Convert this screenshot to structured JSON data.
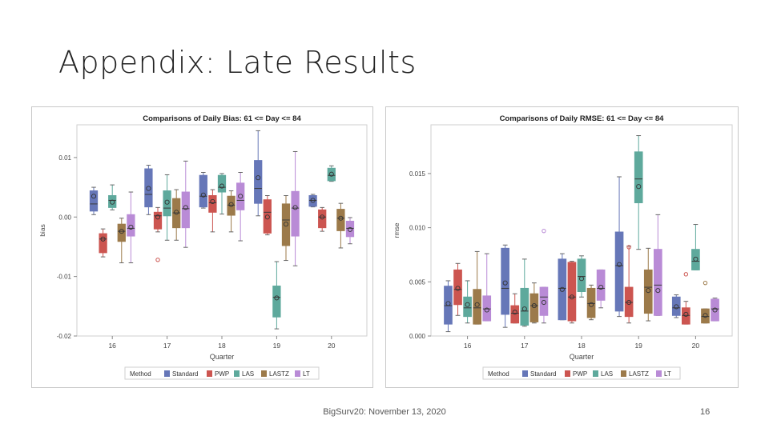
{
  "slide": {
    "title": "Appendix: Late Results",
    "footer": "BigSurv20: November 13, 2020",
    "page_number": "16"
  },
  "colors": {
    "Standard": "#6677b8",
    "PWP": "#cc5550",
    "LAS": "#5ea99c",
    "LASTZ": "#9c7a4a",
    "LT": "#b98bd6"
  },
  "chart_data": [
    {
      "type": "box",
      "title": "Comparisons of Daily Bias: 61 <= Day <= 84",
      "xlabel": "Quarter",
      "ylabel": "bias",
      "ylim": [
        -0.02,
        0.0155
      ],
      "yticks": [
        0.01,
        0.0,
        -0.01,
        -0.02
      ],
      "ytick_labels": [
        "0.01",
        "0.00",
        "-0.01",
        "-0.02"
      ],
      "categories": [
        "16",
        "17",
        "18",
        "19",
        "20"
      ],
      "legend_title": "Method",
      "series": [
        {
          "name": "Standard",
          "boxes": [
            {
              "min": 0.0004,
              "q1": 0.001,
              "median": 0.0022,
              "q3": 0.0044,
              "max": 0.005,
              "mean": 0.0035
            },
            {
              "min": 0.0004,
              "q1": 0.0017,
              "median": 0.0038,
              "q3": 0.0081,
              "max": 0.0087,
              "mean": 0.0048
            },
            {
              "min": 0.0015,
              "q1": 0.0017,
              "median": 0.0035,
              "q3": 0.007,
              "max": 0.0075,
              "mean": 0.0037
            },
            {
              "min": 0.0002,
              "q1": 0.0023,
              "median": 0.0048,
              "q3": 0.0095,
              "max": 0.0145,
              "mean": 0.0066
            },
            {
              "min": 0.0017,
              "q1": 0.0018,
              "median": 0.0028,
              "q3": 0.0036,
              "max": 0.0038,
              "mean": 0.0028
            }
          ]
        },
        {
          "name": "PWP",
          "boxes": [
            {
              "min": -0.0067,
              "q1": -0.006,
              "median": -0.0037,
              "q3": -0.0028,
              "max": -0.002,
              "mean": -0.0037
            },
            {
              "min": -0.0025,
              "q1": -0.002,
              "median": 0.0002,
              "q3": 0.0008,
              "max": 0.0016,
              "mean": 0.0,
              "outliers": [
                -0.0072
              ]
            },
            {
              "min": -0.0025,
              "q1": 0.0008,
              "median": 0.0024,
              "q3": 0.0036,
              "max": 0.0046,
              "mean": 0.0026
            },
            {
              "min": -0.003,
              "q1": -0.0027,
              "median": 0.0008,
              "q3": 0.0029,
              "max": 0.0036,
              "mean": 0.0
            },
            {
              "min": -0.0024,
              "q1": -0.0018,
              "median": 0.0,
              "q3": 0.0012,
              "max": 0.0016,
              "mean": 0.0
            }
          ]
        },
        {
          "name": "LAS",
          "boxes": [
            {
              "min": 0.0012,
              "q1": 0.0016,
              "median": 0.0028,
              "q3": 0.0036,
              "max": 0.0054,
              "mean": 0.0025
            },
            {
              "min": -0.0039,
              "q1": 0.0002,
              "median": 0.0015,
              "q3": 0.0044,
              "max": 0.0071,
              "mean": 0.0025
            },
            {
              "min": 0.0005,
              "q1": 0.0042,
              "median": 0.005,
              "q3": 0.007,
              "max": 0.0073,
              "mean": 0.0052
            },
            {
              "min": -0.0188,
              "q1": -0.0168,
              "median": -0.0135,
              "q3": -0.0116,
              "max": -0.0075,
              "mean": -0.0136
            },
            {
              "min": 0.006,
              "q1": 0.0061,
              "median": 0.007,
              "q3": 0.0082,
              "max": 0.0086,
              "mean": 0.0072
            }
          ]
        },
        {
          "name": "LASTZ",
          "boxes": [
            {
              "min": -0.0077,
              "q1": -0.0041,
              "median": -0.0024,
              "q3": -0.0012,
              "max": -0.0002,
              "mean": -0.0024
            },
            {
              "min": -0.0039,
              "q1": -0.0018,
              "median": 0.0007,
              "q3": 0.0031,
              "max": 0.0046,
              "mean": 0.0008
            },
            {
              "min": -0.0025,
              "q1": 0.0003,
              "median": 0.002,
              "q3": 0.0035,
              "max": 0.0044,
              "mean": 0.0021
            },
            {
              "min": -0.0073,
              "q1": -0.0048,
              "median": -0.0005,
              "q3": 0.0022,
              "max": 0.0036,
              "mean": -0.0012
            },
            {
              "min": -0.0052,
              "q1": -0.0023,
              "median": -0.0002,
              "q3": 0.0013,
              "max": 0.0023,
              "mean": -0.0002
            }
          ]
        },
        {
          "name": "LT",
          "boxes": [
            {
              "min": -0.0077,
              "q1": -0.0032,
              "median": -0.0019,
              "q3": 0.0004,
              "max": 0.0042,
              "mean": -0.0017
            },
            {
              "min": -0.0051,
              "q1": -0.0018,
              "median": 0.0014,
              "q3": 0.0042,
              "max": 0.0094,
              "mean": 0.0016
            },
            {
              "min": -0.004,
              "q1": 0.0012,
              "median": 0.0028,
              "q3": 0.0057,
              "max": 0.0075,
              "mean": 0.0035
            },
            {
              "min": -0.0082,
              "q1": -0.0032,
              "median": 0.0015,
              "q3": 0.0043,
              "max": 0.011,
              "mean": 0.0016
            },
            {
              "min": -0.0045,
              "q1": -0.0033,
              "median": -0.0019,
              "q3": -0.0007,
              "max": -0.0001,
              "mean": -0.0021
            }
          ]
        }
      ]
    },
    {
      "type": "box",
      "title": "Comparisons of Daily RMSE: 61 <= Day <= 84",
      "xlabel": "Quarter",
      "ylabel": "rmse",
      "ylim": [
        0.0,
        0.0195
      ],
      "yticks": [
        0.015,
        0.01,
        0.005,
        0.0
      ],
      "ytick_labels": [
        "0.015",
        "0.010",
        "0.005",
        "0.000"
      ],
      "categories": [
        "16",
        "17",
        "18",
        "19",
        "20"
      ],
      "legend_title": "Method",
      "series": [
        {
          "name": "Standard",
          "boxes": [
            {
              "min": 0.0004,
              "q1": 0.0011,
              "median": 0.0028,
              "q3": 0.0046,
              "max": 0.0051,
              "mean": 0.003
            },
            {
              "min": 0.0008,
              "q1": 0.002,
              "median": 0.0044,
              "q3": 0.0081,
              "max": 0.0084,
              "mean": 0.0049
            },
            {
              "min": 0.0015,
              "q1": 0.0015,
              "median": 0.0044,
              "q3": 0.0071,
              "max": 0.0076,
              "mean": 0.0043
            },
            {
              "min": 0.0018,
              "q1": 0.0023,
              "median": 0.0065,
              "q3": 0.0096,
              "max": 0.0147,
              "mean": 0.0066
            },
            {
              "min": 0.0017,
              "q1": 0.0019,
              "median": 0.0026,
              "q3": 0.0036,
              "max": 0.0038,
              "mean": 0.0027
            }
          ]
        },
        {
          "name": "PWP",
          "boxes": [
            {
              "min": 0.0019,
              "q1": 0.0029,
              "median": 0.0043,
              "q3": 0.0061,
              "max": 0.0067,
              "mean": 0.0044
            },
            {
              "min": 0.0012,
              "q1": 0.0012,
              "median": 0.0021,
              "q3": 0.0028,
              "max": 0.0039,
              "mean": 0.0022
            },
            {
              "min": 0.0012,
              "q1": 0.0014,
              "median": 0.0036,
              "q3": 0.0068,
              "max": 0.0069,
              "mean": 0.0036
            },
            {
              "min": 0.0012,
              "q1": 0.0018,
              "median": 0.0031,
              "q3": 0.0045,
              "max": 0.0083,
              "mean": 0.0031,
              "outliers": [
                0.0082
              ]
            },
            {
              "min": 0.0011,
              "q1": 0.0011,
              "median": 0.0019,
              "q3": 0.0026,
              "max": 0.0032,
              "mean": 0.002,
              "outliers": [
                0.0057
              ]
            }
          ]
        },
        {
          "name": "LAS",
          "boxes": [
            {
              "min": 0.0012,
              "q1": 0.0018,
              "median": 0.0026,
              "q3": 0.0036,
              "max": 0.0051,
              "mean": 0.0029
            },
            {
              "min": 0.0009,
              "q1": 0.001,
              "median": 0.0023,
              "q3": 0.0044,
              "max": 0.0071,
              "mean": 0.0025
            },
            {
              "min": 0.0036,
              "q1": 0.0041,
              "median": 0.0055,
              "q3": 0.0071,
              "max": 0.0074,
              "mean": 0.0053
            },
            {
              "min": 0.008,
              "q1": 0.0123,
              "median": 0.0145,
              "q3": 0.017,
              "max": 0.0185,
              "mean": 0.0138
            },
            {
              "min": 0.0061,
              "q1": 0.0061,
              "median": 0.0069,
              "q3": 0.008,
              "max": 0.0103,
              "mean": 0.0071
            }
          ]
        },
        {
          "name": "LASTZ",
          "boxes": [
            {
              "min": 0.0011,
              "q1": 0.0011,
              "median": 0.0026,
              "q3": 0.0043,
              "max": 0.0078,
              "mean": 0.0029
            },
            {
              "min": 0.0012,
              "q1": 0.0013,
              "median": 0.0028,
              "q3": 0.0039,
              "max": 0.0049,
              "mean": 0.0028
            },
            {
              "min": 0.0015,
              "q1": 0.0017,
              "median": 0.003,
              "q3": 0.0044,
              "max": 0.0047,
              "mean": 0.0029
            },
            {
              "min": 0.0014,
              "q1": 0.0021,
              "median": 0.0045,
              "q3": 0.0061,
              "max": 0.0081,
              "mean": 0.0042
            },
            {
              "min": 0.0012,
              "q1": 0.0012,
              "median": 0.0018,
              "q3": 0.0025,
              "max": 0.0025,
              "mean": 0.0019,
              "outliers": [
                0.0049
              ]
            }
          ]
        },
        {
          "name": "LT",
          "boxes": [
            {
              "min": 0.0014,
              "q1": 0.0014,
              "median": 0.0025,
              "q3": 0.0037,
              "max": 0.0076,
              "mean": 0.0024
            },
            {
              "min": 0.0012,
              "q1": 0.0019,
              "median": 0.0036,
              "q3": 0.0045,
              "max": 0.0045,
              "mean": 0.0031,
              "outliers": [
                0.0097
              ]
            },
            {
              "min": 0.0026,
              "q1": 0.0033,
              "median": 0.0044,
              "q3": 0.0061,
              "max": 0.0061,
              "mean": 0.0045
            },
            {
              "min": 0.0019,
              "q1": 0.0019,
              "median": 0.0047,
              "q3": 0.008,
              "max": 0.0112,
              "mean": 0.0042
            },
            {
              "min": 0.0014,
              "q1": 0.0014,
              "median": 0.0025,
              "q3": 0.0034,
              "max": 0.0035,
              "mean": 0.0024
            }
          ]
        }
      ]
    }
  ]
}
